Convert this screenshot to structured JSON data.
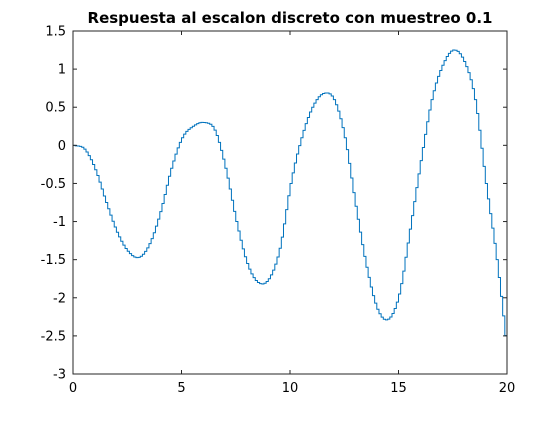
{
  "chart_data": {
    "type": "line",
    "style": "stairs",
    "title": "Respuesta al escalon discreto con muestreo 0.1",
    "xlabel": "",
    "ylabel": "",
    "xlim": [
      0,
      20
    ],
    "ylim": [
      -3,
      1.5
    ],
    "xticks": [
      0,
      5,
      10,
      15,
      20
    ],
    "xtick_labels": [
      "0",
      "5",
      "10",
      "15",
      "20"
    ],
    "yticks": [
      -3,
      -2.5,
      -2,
      -1.5,
      -1,
      -0.5,
      0,
      0.5,
      1,
      1.5
    ],
    "ytick_labels": [
      "-3",
      "-2.5",
      "-2",
      "-1.5",
      "-1",
      "-0.5",
      "0",
      "0.5",
      "1",
      "1.5"
    ],
    "grid": false,
    "legend": "none",
    "sample_time": 0.1,
    "series": [
      {
        "color": "#0072bd",
        "x": [
          0,
          0.5,
          1,
          1.5,
          2,
          2.5,
          3,
          3.5,
          4,
          4.5,
          5,
          5.5,
          6,
          6.5,
          7,
          7.5,
          8,
          8.5,
          9,
          9.5,
          10,
          10.5,
          11,
          11.5,
          12,
          12.5,
          13,
          13.5,
          14,
          14.5,
          15,
          15.5,
          16,
          16.5,
          17,
          17.5,
          18,
          18.5,
          19,
          19.5,
          20
        ],
        "y": [
          0,
          -0.05,
          -0.32,
          -0.75,
          -1.14,
          -1.39,
          -1.47,
          -1.29,
          -0.87,
          -0.3,
          0.1,
          0.25,
          0.3,
          0.2,
          -0.3,
          -1.0,
          -1.55,
          -1.8,
          -1.75,
          -1.35,
          -0.5,
          0.1,
          0.5,
          0.68,
          0.6,
          0.1,
          -0.8,
          -1.6,
          -2.15,
          -2.28,
          -1.95,
          -1.1,
          -0.2,
          0.6,
          1.05,
          1.25,
          1.1,
          0.6,
          -0.5,
          -1.5,
          -2.75
        ]
      }
    ]
  }
}
